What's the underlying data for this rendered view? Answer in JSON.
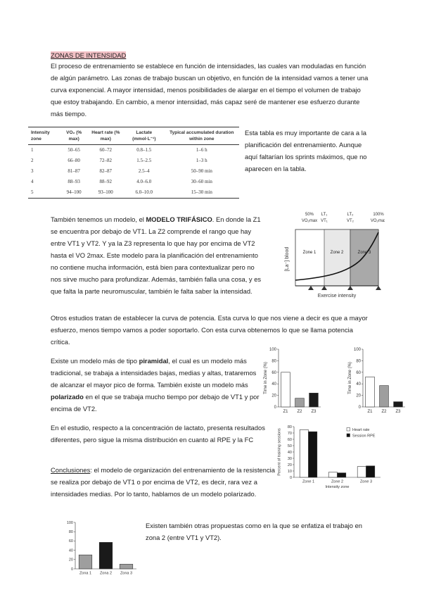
{
  "heading": "ZONAS DE INTENSIDAD",
  "intro": "El proceso de entrenamiento se establece en función de intensidades, las cuales van moduladas en función de algún parámetro. Las zonas de trabajo buscan un objetivo, en función de la intensidad vamos a tener una curva exponencial. A mayor intensidad, menos posibilidades de alargar en el tiempo el volumen de trabajo que estoy trabajando. En cambio, a menor intensidad, más capaz seré de mantener ese esfuerzo durante más tiempo.",
  "table": {
    "header": [
      "Intensity zone",
      "VO₂ (% max)",
      "Heart rate (% max)",
      "Lactate (mmol·L⁻¹)",
      "Typical accumulated duration within zone"
    ],
    "rows": [
      [
        "1",
        "50–65",
        "60–72",
        "0.8–1.5",
        "1–6 h"
      ],
      [
        "2",
        "66–80",
        "72–82",
        "1.5–2.5",
        "1–3 h"
      ],
      [
        "3",
        "81–87",
        "82–87",
        "2.5–4",
        "50–90 min"
      ],
      [
        "4",
        "88–93",
        "88–92",
        "4.0–6.0",
        "30–60 min"
      ],
      [
        "5",
        "94–100",
        "93–100",
        "6.0–10.0",
        "15–30 min"
      ]
    ]
  },
  "table_note": "Esta tabla es muy importante de cara a la planificación del entrenamiento. Aunque aquí faltarían los sprints máximos, que no aparecen en la tabla.",
  "triphasic": [
    "También tenemos un modelo, el ",
    "MODELO TRIFÁSICO",
    ". En donde la Z1 se encuentra por debajo de VT1. La Z2 comprende el rango que hay entre VT1 y VT2. Y ya la Z3 representa lo que hay por encima de VT2 hasta el VO 2max. Este modelo para la planificación del entrenamiento no contiene mucha información, está bien para contextualizar pero no nos sirve mucho para profundizar. Además, también falla una cosa, y es que falta la parte neuromuscular, también le falta saber la intensidad."
  ],
  "zones_diagram": {
    "top_labels": [
      [
        "50%",
        "VO₂max"
      ],
      [
        "LT₁",
        "VT₁"
      ],
      [
        "LT₂",
        "VT₂"
      ],
      [
        "100%",
        "VO₂max"
      ]
    ],
    "zones": [
      "Zone 1",
      "Zone 2",
      "Zone 3"
    ],
    "y_label": "[La⁻] blood",
    "x_label": "Exercise intensity"
  },
  "power_curve": "Otros estudios tratan de establecer la curva de potencia. Esta curva lo que nos viene a decir es que a mayor esfuerzo, menos tiempo vamos a poder soportarlo. Con esta curva obtenemos lo que se llama potencia crítica.",
  "models": [
    "Existe un modelo más de tipo ",
    "piramidal",
    ", el cual es un modelo más tradicional, se trabaja a intensidades bajas, medias y altas, trataremos de alcanzar el mayor pico de forma. También existe un modelo más ",
    "polarizado",
    " en el que se trabaja mucho tiempo por debajo de VT1 y por encima de VT2."
  ],
  "pyramidal_chart": {
    "type": "bar",
    "y_label": "Time in Zone (%)",
    "categories": [
      "Z1",
      "Z2",
      "Z3"
    ],
    "values": [
      60,
      15,
      24
    ],
    "colors": [
      "#ffffff",
      "#9e9e9e",
      "#1a1a1a"
    ],
    "ylim": [
      0,
      100
    ],
    "yticks": [
      0,
      20,
      40,
      60,
      80,
      100
    ]
  },
  "polarized_chart": {
    "type": "bar",
    "y_label": "Time in Zone (%)",
    "categories": [
      "Z1",
      "Z2",
      "Z3"
    ],
    "values": [
      52,
      37,
      9
    ],
    "colors": [
      "#ffffff",
      "#9e9e9e",
      "#1a1a1a"
    ],
    "ylim": [
      0,
      100
    ],
    "yticks": [
      0,
      20,
      40,
      60,
      80,
      100
    ]
  },
  "lactate": "En el estudio, respecto a la concentración de lactato, presenta resultados diferentes, pero sigue la misma distribución en cuanto al RPE y la FC",
  "rpe_chart": {
    "type": "grouped_bar",
    "y_label": "Percent of training sessions",
    "x_label": "Intensity zone",
    "categories": [
      "Zone 1",
      "Zone 2",
      "Zone 3"
    ],
    "series": [
      {
        "name": "Heart rate",
        "color": "#ffffff",
        "values": [
          75,
          8,
          17
        ]
      },
      {
        "name": "Session RPE",
        "color": "#111111",
        "values": [
          72,
          7,
          18
        ]
      }
    ],
    "ylim": [
      0,
      80
    ],
    "yticks": [
      0,
      10,
      20,
      30,
      40,
      50,
      60,
      70,
      80
    ]
  },
  "conclusions": [
    "Conclusiones",
    ": el modelo de organización del entrenamiento de la resistencia se realiza por debajo de VT1 o por encima de VT2, es decir, rara vez a intensidades medias. Por lo tanto, hablamos de un modelo polarizado."
  ],
  "zone2_chart": {
    "type": "bar",
    "categories": [
      "Zona 1",
      "Zona 2",
      "Zona 3"
    ],
    "values": [
      30,
      57,
      10
    ],
    "colors": [
      "#9e9e9e",
      "#1a1a1a",
      "#9e9e9e"
    ],
    "ylim": [
      0,
      100
    ],
    "yticks": [
      0,
      20,
      40,
      60,
      80,
      100
    ]
  },
  "zone2_text": "Existen también otras propuestas como en la que se enfatiza el trabajo en zona 2 (entre VT1 y VT2)."
}
